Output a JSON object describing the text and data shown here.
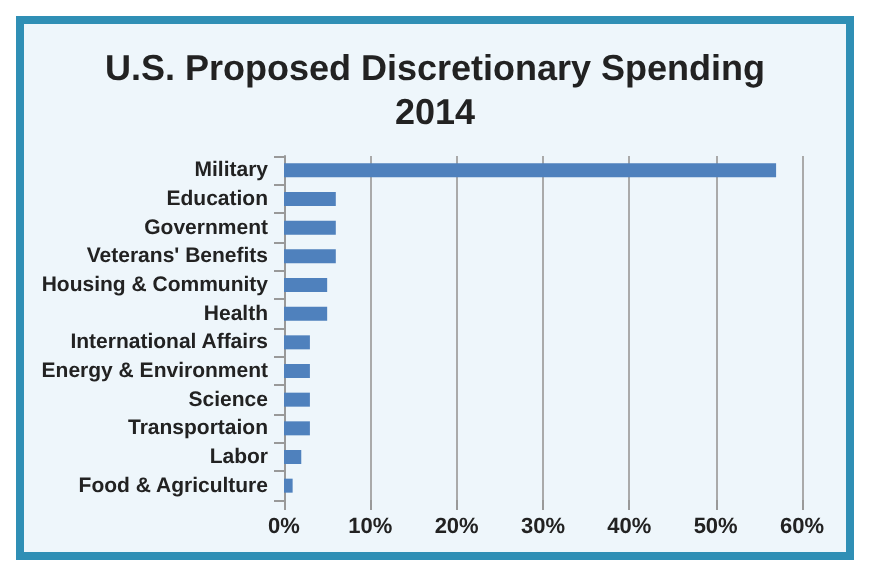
{
  "chart_data": {
    "type": "bar",
    "orientation": "horizontal",
    "title": "U.S. Proposed Discretionary Spending\n2014",
    "categories": [
      "Military",
      "Education",
      "Government",
      "Veterans' Benefits",
      "Housing & Community",
      "Health",
      "International Affairs",
      "Energy & Environment",
      "Science",
      "Transportaion",
      "Labor",
      "Food & Agriculture"
    ],
    "values": [
      57,
      6,
      6,
      6,
      5,
      5,
      3,
      3,
      3,
      3,
      2,
      1
    ],
    "color": "#4f81bd",
    "xlim": [
      0,
      60
    ],
    "xticks": [
      {
        "value": 0,
        "label": "0%"
      },
      {
        "value": 10,
        "label": "10%"
      },
      {
        "value": 20,
        "label": "20%"
      },
      {
        "value": 30,
        "label": "30%"
      },
      {
        "value": 40,
        "label": "40%"
      },
      {
        "value": 50,
        "label": "50%"
      },
      {
        "value": 60,
        "label": "60%"
      }
    ],
    "grid": "x"
  }
}
